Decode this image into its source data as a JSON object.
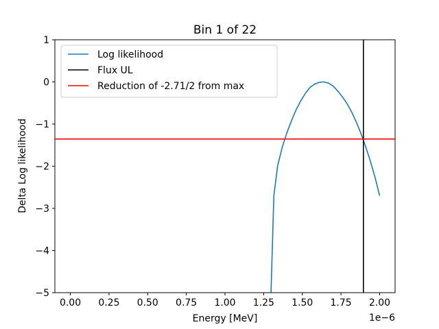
{
  "chart_data": {
    "type": "line",
    "title": "Bin 1 of 22",
    "xlabel": "Energy [MeV]",
    "ylabel": "Delta Log likelihood",
    "x_offset_text": "1e−6",
    "xlim": [
      -0.1,
      2.1
    ],
    "ylim": [
      -5,
      1
    ],
    "x_ticks": [
      0.0,
      0.25,
      0.5,
      0.75,
      1.0,
      1.25,
      1.5,
      1.75,
      2.0
    ],
    "x_tick_labels": [
      "0.00",
      "0.25",
      "0.50",
      "0.75",
      "1.00",
      "1.25",
      "1.50",
      "1.75",
      "2.00"
    ],
    "y_ticks": [
      1,
      0,
      -1,
      -2,
      -3,
      -4,
      -5
    ],
    "y_tick_labels": [
      "1",
      "0",
      "−1",
      "−2",
      "−3",
      "−4",
      "−5"
    ],
    "grid": false,
    "legend_position": "top-left",
    "series": [
      {
        "name": "Log likelihood",
        "color": "#1f77b4",
        "kind": "curve",
        "x": [
          1.296,
          1.316,
          1.34,
          1.37,
          1.4,
          1.43,
          1.46,
          1.49,
          1.52,
          1.55,
          1.58,
          1.61,
          1.64,
          1.67,
          1.7,
          1.73,
          1.76,
          1.79,
          1.82,
          1.85,
          1.88,
          1.91,
          1.94,
          1.97,
          2.0
        ],
        "y": [
          -5.2,
          -2.7,
          -2.0,
          -1.55,
          -1.21,
          -0.92,
          -0.66,
          -0.45,
          -0.27,
          -0.13,
          -0.05,
          -0.01,
          0.0,
          -0.03,
          -0.1,
          -0.22,
          -0.36,
          -0.52,
          -0.72,
          -0.96,
          -1.23,
          -1.54,
          -1.88,
          -2.26,
          -2.7
        ]
      },
      {
        "name": "Flux UL",
        "color": "#000000",
        "kind": "vline",
        "x_value": 1.895
      },
      {
        "name": "Reduction of -2.71/2 from max",
        "color": "#ff0000",
        "kind": "hline",
        "y_value": -1.355
      }
    ]
  }
}
